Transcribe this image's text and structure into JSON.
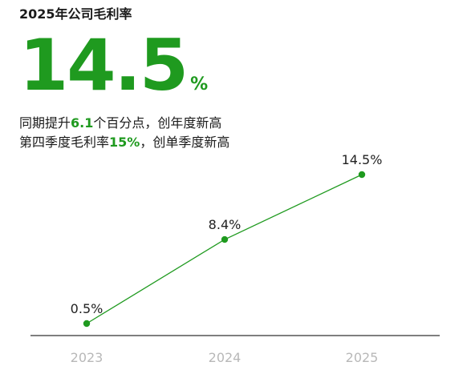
{
  "header": {
    "title": "2025年公司毛利率",
    "big_value": "14.5",
    "big_unit": "%"
  },
  "highlights": {
    "line1_pre": "同期提升",
    "line1_value": "6.1",
    "line1_post": "个百分点，创年度新高",
    "line2_pre": "第四季度毛利率",
    "line2_value": "15%",
    "line2_post": "，创单季度新高"
  },
  "colors": {
    "accent": "#1f9a1f",
    "axis": "#333333",
    "tick_text": "#b8b8b8"
  },
  "chart_data": {
    "type": "line",
    "categories": [
      "2023",
      "2024",
      "2025"
    ],
    "values": [
      0.5,
      8.4,
      14.5
    ],
    "value_labels": [
      "0.5%",
      "8.4%",
      "14.5%"
    ],
    "title": "",
    "xlabel": "",
    "ylabel": "",
    "grid": false,
    "legend": "none"
  }
}
